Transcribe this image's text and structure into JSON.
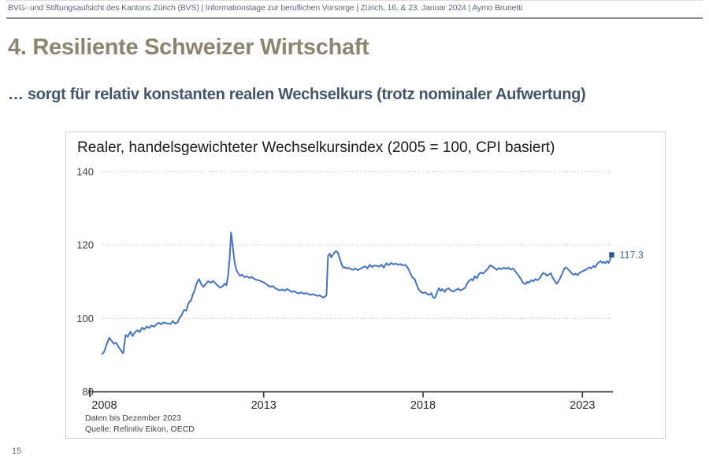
{
  "header": {
    "text": "BVG- und Stiftungsaufsicht des Kantons Zürich (BVS) |  Informationstage zur beruflichen Vorsorge | Zürich, 16. & 23. Januar 2024 | Aymo Brunetti"
  },
  "slide": {
    "title": "4. Resiliente Schweizer Wirtschaft",
    "subtitle": "… sorgt für relativ konstanten realen Wechselkurs (trotz nominaler Aufwertung)",
    "page_number": "15"
  },
  "chart": {
    "title": "Realer, handelsgewichteter Wechselkursindex (2005 = 100, CPI basiert)",
    "notes": [
      "Daten bis Dezember 2023",
      "Quelle: Refinitiv Eikon, OECD"
    ],
    "last_value_label": "117.3"
  },
  "chart_data": {
    "type": "line",
    "title": "Realer, handelsgewichteter Wechselkursindex (2005 = 100, CPI basiert)",
    "frequency": "monthly",
    "x_ticks": [
      2008,
      2013,
      2018,
      2023
    ],
    "y_ticks": [
      80,
      100,
      120,
      140
    ],
    "xlim": [
      2007.55,
      2023.97
    ],
    "ylim": [
      80,
      141.5
    ],
    "grid": "horizontal-dotted",
    "colors": {
      "line": "#4472C4",
      "marker": "#2E5697",
      "end_label": "#44679C"
    },
    "last_point": {
      "x": 2023.92,
      "y": 117.3,
      "label": "117.3"
    },
    "source": "Refinitiv Eikon, OECD",
    "points": [
      [
        2007.93,
        90.3
      ],
      [
        2008.0,
        91.0
      ],
      [
        2008.07,
        92.8
      ],
      [
        2008.15,
        94.7
      ],
      [
        2008.22,
        94.0
      ],
      [
        2008.3,
        93.1
      ],
      [
        2008.37,
        93.4
      ],
      [
        2008.44,
        92.3
      ],
      [
        2008.52,
        91.3
      ],
      [
        2008.59,
        90.5
      ],
      [
        2008.67,
        95.5
      ],
      [
        2008.74,
        95.0
      ],
      [
        2008.82,
        96.4
      ],
      [
        2008.89,
        95.2
      ],
      [
        2008.96,
        96.2
      ],
      [
        2009.04,
        96.8
      ],
      [
        2009.11,
        96.3
      ],
      [
        2009.19,
        97.5
      ],
      [
        2009.26,
        97.0
      ],
      [
        2009.33,
        97.8
      ],
      [
        2009.41,
        97.4
      ],
      [
        2009.48,
        98.1
      ],
      [
        2009.56,
        97.7
      ],
      [
        2009.63,
        98.4
      ],
      [
        2009.71,
        98.8
      ],
      [
        2009.78,
        98.4
      ],
      [
        2009.85,
        98.9
      ],
      [
        2009.93,
        98.7
      ],
      [
        2010.0,
        98.6
      ],
      [
        2010.08,
        98.5
      ],
      [
        2010.15,
        99.3
      ],
      [
        2010.22,
        98.6
      ],
      [
        2010.3,
        98.9
      ],
      [
        2010.35,
        100.0
      ],
      [
        2010.42,
        100.8
      ],
      [
        2010.5,
        102.3
      ],
      [
        2010.57,
        102.1
      ],
      [
        2010.62,
        103.6
      ],
      [
        2010.67,
        104.6
      ],
      [
        2010.72,
        104.8
      ],
      [
        2010.77,
        106.4
      ],
      [
        2010.82,
        107.2
      ],
      [
        2010.87,
        108.8
      ],
      [
        2010.92,
        110.0
      ],
      [
        2010.97,
        110.7
      ],
      [
        2011.04,
        109.3
      ],
      [
        2011.11,
        108.6
      ],
      [
        2011.19,
        109.4
      ],
      [
        2011.26,
        110.1
      ],
      [
        2011.34,
        109.7
      ],
      [
        2011.41,
        110.2
      ],
      [
        2011.49,
        109.5
      ],
      [
        2011.56,
        108.9
      ],
      [
        2011.63,
        108.4
      ],
      [
        2011.71,
        108.7
      ],
      [
        2011.78,
        109.5
      ],
      [
        2011.83,
        109.0
      ],
      [
        2011.88,
        111.5
      ],
      [
        2011.93,
        116.0
      ],
      [
        2011.98,
        123.4
      ],
      [
        2012.03,
        119.5
      ],
      [
        2012.08,
        115.8
      ],
      [
        2012.13,
        113.5
      ],
      [
        2012.18,
        112.6
      ],
      [
        2012.25,
        111.6
      ],
      [
        2012.33,
        111.9
      ],
      [
        2012.4,
        111.2
      ],
      [
        2012.47,
        111.5
      ],
      [
        2012.55,
        111.0
      ],
      [
        2012.62,
        111.3
      ],
      [
        2012.7,
        110.8
      ],
      [
        2012.77,
        110.5
      ],
      [
        2012.84,
        110.4
      ],
      [
        2012.92,
        110.1
      ],
      [
        2013.0,
        109.8
      ],
      [
        2013.07,
        109.4
      ],
      [
        2013.14,
        108.9
      ],
      [
        2013.22,
        108.6
      ],
      [
        2013.29,
        108.8
      ],
      [
        2013.36,
        108.2
      ],
      [
        2013.44,
        107.9
      ],
      [
        2013.51,
        107.6
      ],
      [
        2013.59,
        107.9
      ],
      [
        2013.66,
        107.5
      ],
      [
        2013.73,
        108.0
      ],
      [
        2013.81,
        107.6
      ],
      [
        2013.88,
        107.2
      ],
      [
        2013.96,
        107.4
      ],
      [
        2014.03,
        107.0
      ],
      [
        2014.1,
        106.8
      ],
      [
        2014.18,
        107.1
      ],
      [
        2014.25,
        106.7
      ],
      [
        2014.33,
        106.9
      ],
      [
        2014.4,
        106.6
      ],
      [
        2014.48,
        106.4
      ],
      [
        2014.55,
        106.6
      ],
      [
        2014.62,
        106.3
      ],
      [
        2014.7,
        106.1
      ],
      [
        2014.77,
        106.3
      ],
      [
        2014.82,
        105.9
      ],
      [
        2014.87,
        105.7
      ],
      [
        2014.92,
        105.9
      ],
      [
        2014.97,
        106.3
      ],
      [
        2015.02,
        117.0
      ],
      [
        2015.07,
        117.6
      ],
      [
        2015.12,
        116.6
      ],
      [
        2015.17,
        117.3
      ],
      [
        2015.22,
        117.9
      ],
      [
        2015.27,
        118.3
      ],
      [
        2015.32,
        118.0
      ],
      [
        2015.37,
        116.8
      ],
      [
        2015.41,
        115.7
      ],
      [
        2015.46,
        114.4
      ],
      [
        2015.51,
        113.8
      ],
      [
        2015.56,
        113.9
      ],
      [
        2015.61,
        113.6
      ],
      [
        2015.66,
        113.8
      ],
      [
        2015.74,
        113.4
      ],
      [
        2015.81,
        113.2
      ],
      [
        2015.88,
        113.6
      ],
      [
        2015.96,
        113.1
      ],
      [
        2016.03,
        113.5
      ],
      [
        2016.11,
        113.9
      ],
      [
        2016.18,
        114.2
      ],
      [
        2016.26,
        113.6
      ],
      [
        2016.33,
        114.6
      ],
      [
        2016.4,
        114.0
      ],
      [
        2016.48,
        114.4
      ],
      [
        2016.55,
        114.3
      ],
      [
        2016.63,
        114.1
      ],
      [
        2016.7,
        114.6
      ],
      [
        2016.77,
        113.8
      ],
      [
        2016.85,
        115.0
      ],
      [
        2016.92,
        114.5
      ],
      [
        2017.0,
        115.1
      ],
      [
        2017.07,
        114.7
      ],
      [
        2017.14,
        114.9
      ],
      [
        2017.22,
        114.6
      ],
      [
        2017.29,
        114.8
      ],
      [
        2017.37,
        114.4
      ],
      [
        2017.44,
        114.6
      ],
      [
        2017.52,
        113.8
      ],
      [
        2017.59,
        112.5
      ],
      [
        2017.66,
        111.2
      ],
      [
        2017.74,
        110.7
      ],
      [
        2017.79,
        109.4
      ],
      [
        2017.86,
        108.0
      ],
      [
        2017.93,
        107.2
      ],
      [
        2018.01,
        106.9
      ],
      [
        2018.08,
        107.1
      ],
      [
        2018.13,
        106.6
      ],
      [
        2018.21,
        106.4
      ],
      [
        2018.26,
        106.9
      ],
      [
        2018.31,
        105.8
      ],
      [
        2018.36,
        105.5
      ],
      [
        2018.41,
        106.3
      ],
      [
        2018.45,
        107.3
      ],
      [
        2018.5,
        108.2
      ],
      [
        2018.55,
        107.5
      ],
      [
        2018.6,
        108.0
      ],
      [
        2018.68,
        107.2
      ],
      [
        2018.73,
        107.9
      ],
      [
        2018.8,
        108.2
      ],
      [
        2018.87,
        107.6
      ],
      [
        2018.95,
        107.3
      ],
      [
        2019.02,
        107.7
      ],
      [
        2019.1,
        108.1
      ],
      [
        2019.17,
        107.6
      ],
      [
        2019.24,
        107.9
      ],
      [
        2019.32,
        108.3
      ],
      [
        2019.37,
        109.3
      ],
      [
        2019.44,
        110.2
      ],
      [
        2019.52,
        110.7
      ],
      [
        2019.57,
        110.3
      ],
      [
        2019.62,
        111.5
      ],
      [
        2019.69,
        110.9
      ],
      [
        2019.74,
        111.9
      ],
      [
        2019.81,
        112.5
      ],
      [
        2019.89,
        112.2
      ],
      [
        2019.96,
        112.9
      ],
      [
        2020.04,
        113.6
      ],
      [
        2020.11,
        114.5
      ],
      [
        2020.16,
        114.2
      ],
      [
        2020.23,
        113.8
      ],
      [
        2020.31,
        113.2
      ],
      [
        2020.38,
        113.7
      ],
      [
        2020.46,
        113.4
      ],
      [
        2020.53,
        113.8
      ],
      [
        2020.6,
        113.5
      ],
      [
        2020.68,
        113.8
      ],
      [
        2020.75,
        113.3
      ],
      [
        2020.83,
        113.6
      ],
      [
        2020.88,
        113.0
      ],
      [
        2020.95,
        112.2
      ],
      [
        2021.02,
        111.4
      ],
      [
        2021.1,
        110.3
      ],
      [
        2021.15,
        109.6
      ],
      [
        2021.22,
        109.3
      ],
      [
        2021.27,
        110.0
      ],
      [
        2021.32,
        109.7
      ],
      [
        2021.4,
        110.4
      ],
      [
        2021.47,
        110.1
      ],
      [
        2021.52,
        110.7
      ],
      [
        2021.59,
        110.4
      ],
      [
        2021.67,
        111.0
      ],
      [
        2021.72,
        111.8
      ],
      [
        2021.77,
        112.4
      ],
      [
        2021.84,
        112.1
      ],
      [
        2021.89,
        111.6
      ],
      [
        2021.96,
        112.0
      ],
      [
        2022.01,
        112.3
      ],
      [
        2022.06,
        111.2
      ],
      [
        2022.11,
        110.5
      ],
      [
        2022.19,
        109.4
      ],
      [
        2022.24,
        110.0
      ],
      [
        2022.31,
        111.1
      ],
      [
        2022.38,
        112.5
      ],
      [
        2022.43,
        113.5
      ],
      [
        2022.48,
        113.9
      ],
      [
        2022.53,
        113.5
      ],
      [
        2022.61,
        112.9
      ],
      [
        2022.66,
        112.3
      ],
      [
        2022.73,
        111.9
      ],
      [
        2022.78,
        112.2
      ],
      [
        2022.85,
        111.8
      ],
      [
        2022.9,
        112.3
      ],
      [
        2022.95,
        112.6
      ],
      [
        2023.02,
        112.9
      ],
      [
        2023.1,
        113.2
      ],
      [
        2023.15,
        113.6
      ],
      [
        2023.22,
        113.9
      ],
      [
        2023.27,
        113.6
      ],
      [
        2023.35,
        114.3
      ],
      [
        2023.4,
        113.9
      ],
      [
        2023.47,
        114.9
      ],
      [
        2023.52,
        115.3
      ],
      [
        2023.57,
        115.6
      ],
      [
        2023.62,
        115.1
      ],
      [
        2023.67,
        115.4
      ],
      [
        2023.72,
        115.0
      ],
      [
        2023.77,
        115.6
      ],
      [
        2023.82,
        115.1
      ],
      [
        2023.87,
        116.0
      ],
      [
        2023.92,
        117.3
      ]
    ]
  }
}
